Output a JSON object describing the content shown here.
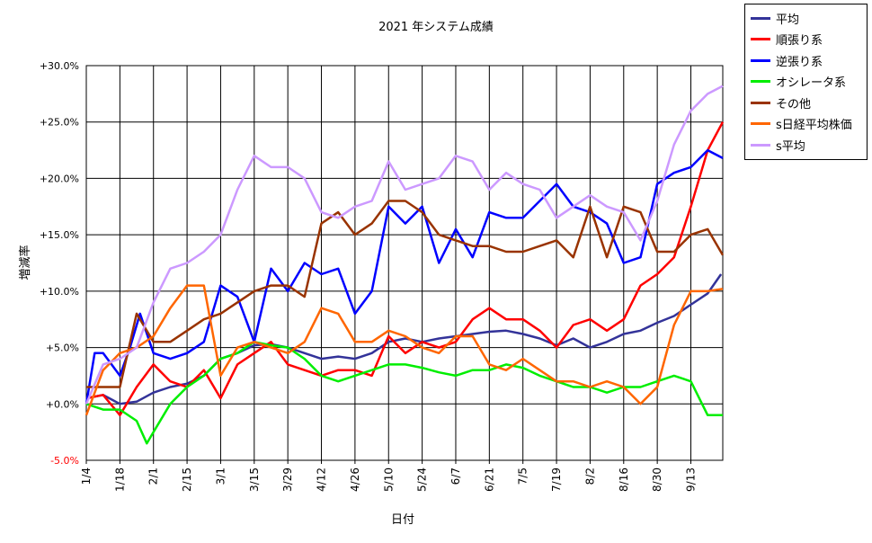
{
  "chart_data": {
    "type": "line",
    "title": "2021 年システム成績",
    "xlabel": "日付",
    "ylabel": "増減率",
    "ylim": [
      -5,
      30
    ],
    "yticks": [
      -5,
      0,
      5,
      10,
      15,
      20,
      25,
      30
    ],
    "ytick_labels": [
      "-5.0%",
      "+0.0%",
      "+5.0%",
      "+10.0%",
      "+15.0%",
      "+20.0%",
      "+25.0%",
      "+30.0%"
    ],
    "negative_tick_color": "#ff0000",
    "grid": true,
    "legend_position": "top-right (outside plot)",
    "x_categories": [
      "1/4",
      "1/18",
      "2/1",
      "2/15",
      "3/1",
      "3/15",
      "3/29",
      "4/12",
      "4/26",
      "5/10",
      "5/24",
      "6/7",
      "6/21",
      "7/5",
      "7/19",
      "8/2",
      "8/16",
      "8/30",
      "9/13"
    ],
    "x_positions": [
      0,
      1,
      2,
      3,
      4,
      5,
      6,
      7,
      8,
      9,
      10,
      11,
      12,
      13,
      14,
      15,
      16,
      17,
      18
    ],
    "xlim": [
      0,
      18.95
    ],
    "series": [
      {
        "name": "平均",
        "color": "#333399",
        "x": [
          0,
          0.5,
          1,
          1.5,
          2,
          2.5,
          3,
          3.5,
          4,
          4.5,
          5,
          5.5,
          6,
          6.5,
          7,
          7.5,
          8,
          8.5,
          9,
          9.5,
          10,
          10.5,
          11,
          11.5,
          12,
          12.5,
          13,
          13.5,
          14,
          14.5,
          15,
          15.5,
          16,
          16.5,
          17,
          17.5,
          18,
          18.5,
          18.9
        ],
        "y": [
          0.5,
          0.8,
          0.0,
          0.2,
          1.0,
          1.5,
          1.8,
          2.5,
          4.0,
          4.5,
          5.2,
          5.3,
          5.0,
          4.5,
          4.0,
          4.2,
          4.0,
          4.5,
          5.5,
          5.8,
          5.5,
          5.8,
          6.0,
          6.2,
          6.4,
          6.5,
          6.2,
          5.8,
          5.2,
          5.8,
          5.0,
          5.5,
          6.2,
          6.5,
          7.2,
          7.8,
          8.8,
          9.8,
          11.5
        ]
      },
      {
        "name": "順張り系",
        "color": "#ff0000",
        "x": [
          0,
          0.5,
          1,
          1.5,
          2,
          2.5,
          3,
          3.5,
          4,
          4.5,
          5,
          5.5,
          6,
          6.5,
          7,
          7.5,
          8,
          8.5,
          9,
          9.5,
          10,
          10.5,
          11,
          11.5,
          12,
          12.5,
          13,
          13.5,
          14,
          14.5,
          15,
          15.5,
          16,
          16.5,
          17,
          17.5,
          18,
          18.5,
          18.95
        ],
        "y": [
          0.5,
          0.8,
          -1.0,
          1.5,
          3.5,
          2.0,
          1.5,
          3.0,
          0.5,
          3.5,
          4.5,
          5.5,
          3.5,
          3.0,
          2.5,
          3.0,
          3.0,
          2.5,
          6.0,
          4.5,
          5.5,
          5.0,
          5.5,
          7.5,
          8.5,
          7.5,
          7.5,
          6.5,
          5.0,
          7.0,
          7.5,
          6.5,
          7.5,
          10.5,
          11.5,
          13.0,
          17.5,
          22.5,
          25.0
        ]
      },
      {
        "name": "逆張り系",
        "color": "#0000ff",
        "x": [
          0,
          0.25,
          0.5,
          1,
          1.3,
          1.6,
          2,
          2.5,
          3,
          3.5,
          4,
          4.5,
          5,
          5.5,
          6,
          6.5,
          7,
          7.5,
          8,
          8.5,
          9,
          9.5,
          10,
          10.5,
          11,
          11.5,
          12,
          12.5,
          13,
          13.5,
          14,
          14.5,
          15,
          15.5,
          16,
          16.5,
          17,
          17.5,
          18,
          18.5,
          18.95
        ],
        "y": [
          0.0,
          4.5,
          4.5,
          2.5,
          5.0,
          8.0,
          4.5,
          4.0,
          4.5,
          5.5,
          10.5,
          9.5,
          5.5,
          12.0,
          10.0,
          12.5,
          11.5,
          12.0,
          8.0,
          10.0,
          17.5,
          16.0,
          17.5,
          12.5,
          15.5,
          13.0,
          17.0,
          16.5,
          16.5,
          18.0,
          19.5,
          17.5,
          17.0,
          16.0,
          12.5,
          13.0,
          19.5,
          20.5,
          21.0,
          22.5,
          21.8
        ]
      },
      {
        "name": "オシレータ系",
        "color": "#00ee00",
        "x": [
          0,
          0.5,
          1,
          1.5,
          1.8,
          2,
          2.5,
          3,
          3.5,
          4,
          4.5,
          5,
          5.5,
          6,
          6.5,
          7,
          7.5,
          8,
          8.5,
          9,
          9.5,
          10,
          10.5,
          11,
          11.5,
          12,
          12.5,
          13,
          13.5,
          14,
          14.5,
          15,
          15.5,
          16,
          16.5,
          17,
          17.5,
          18,
          18.5,
          18.95
        ],
        "y": [
          0.0,
          -0.5,
          -0.5,
          -1.5,
          -3.5,
          -2.5,
          0.0,
          1.5,
          2.5,
          4.0,
          4.5,
          5.5,
          5.2,
          5.0,
          4.0,
          2.5,
          2.0,
          2.5,
          3.0,
          3.5,
          3.5,
          3.2,
          2.8,
          2.5,
          3.0,
          3.0,
          3.5,
          3.2,
          2.5,
          2.0,
          1.5,
          1.5,
          1.0,
          1.5,
          1.5,
          2.0,
          2.5,
          2.0,
          -1.0,
          -1.0
        ]
      },
      {
        "name": "その他",
        "color": "#993300",
        "x": [
          0,
          0.5,
          1,
          1.5,
          2,
          2.5,
          3,
          3.5,
          4,
          4.5,
          5,
          5.5,
          6,
          6.5,
          7,
          7.5,
          8,
          8.5,
          9,
          9.5,
          10,
          10.5,
          11,
          11.5,
          12,
          12.5,
          13,
          13.5,
          14,
          14.5,
          15,
          15.5,
          16,
          16.5,
          17,
          17.5,
          18,
          18.5,
          18.95
        ],
        "y": [
          1.5,
          1.5,
          1.5,
          8.0,
          5.5,
          5.5,
          6.5,
          7.5,
          8.0,
          9.0,
          10.0,
          10.5,
          10.5,
          9.5,
          16.0,
          17.0,
          15.0,
          16.0,
          18.0,
          18.0,
          17.0,
          15.0,
          14.5,
          14.0,
          14.0,
          13.5,
          13.5,
          14.0,
          14.5,
          13.0,
          17.5,
          13.0,
          17.5,
          17.0,
          13.5,
          13.5,
          15.0,
          15.5,
          13.2
        ]
      },
      {
        "name": "s日経平均株価",
        "color": "#ff6600",
        "x": [
          0,
          0.5,
          1,
          1.5,
          2,
          2.5,
          3,
          3.5,
          4,
          4.5,
          5,
          5.5,
          6,
          6.5,
          7,
          7.5,
          8,
          8.5,
          9,
          9.5,
          10,
          10.5,
          11,
          11.5,
          12,
          12.5,
          13,
          13.5,
          14,
          14.5,
          15,
          15.5,
          16,
          16.5,
          17,
          17.5,
          18,
          18.5,
          18.95
        ],
        "y": [
          -1.0,
          3.0,
          4.5,
          5.0,
          6.0,
          8.5,
          10.5,
          10.5,
          2.5,
          5.0,
          5.5,
          5.0,
          4.5,
          5.5,
          8.5,
          8.0,
          5.5,
          5.5,
          6.5,
          6.0,
          5.0,
          4.5,
          6.0,
          6.0,
          3.5,
          3.0,
          4.0,
          3.0,
          2.0,
          2.0,
          1.5,
          2.0,
          1.5,
          0.0,
          1.5,
          7.0,
          10.0,
          10.0,
          10.2
        ]
      },
      {
        "name": "s平均",
        "color": "#cc99ff",
        "x": [
          0,
          0.5,
          1,
          1.5,
          2,
          2.5,
          3,
          3.5,
          4,
          4.5,
          5,
          5.5,
          6,
          6.5,
          7,
          7.5,
          8,
          8.5,
          9,
          9.5,
          10,
          10.5,
          11,
          11.5,
          12,
          12.5,
          13,
          13.5,
          14,
          14.5,
          15,
          15.5,
          16,
          16.5,
          17,
          17.5,
          18,
          18.5,
          18.95
        ],
        "y": [
          0.0,
          3.5,
          4.0,
          5.0,
          9.0,
          12.0,
          12.5,
          13.5,
          15.0,
          19.0,
          22.0,
          21.0,
          21.0,
          20.0,
          17.0,
          16.5,
          17.5,
          18.0,
          21.5,
          19.0,
          19.5,
          20.0,
          22.0,
          21.5,
          19.0,
          20.5,
          19.5,
          19.0,
          16.5,
          17.5,
          18.5,
          17.5,
          17.0,
          14.5,
          18.0,
          23.0,
          26.0,
          27.5,
          28.2
        ]
      }
    ]
  }
}
